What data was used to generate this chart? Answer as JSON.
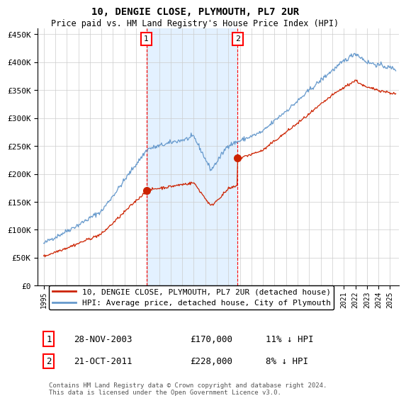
{
  "title": "10, DENGIE CLOSE, PLYMOUTH, PL7 2UR",
  "subtitle": "Price paid vs. HM Land Registry's House Price Index (HPI)",
  "ylim": [
    0,
    460000
  ],
  "yticks": [
    0,
    50000,
    100000,
    150000,
    200000,
    250000,
    300000,
    350000,
    400000,
    450000
  ],
  "ytick_labels": [
    "£0",
    "£50K",
    "£100K",
    "£150K",
    "£200K",
    "£250K",
    "£300K",
    "£350K",
    "£400K",
    "£450K"
  ],
  "grid_color": "#cccccc",
  "hpi_color": "#6699cc",
  "price_color": "#cc2200",
  "span_color": "#ddeeff",
  "sale1_x": 2003.91,
  "sale1_price": 170000,
  "sale2_x": 2011.8,
  "sale2_price": 228000,
  "legend_line1": "10, DENGIE CLOSE, PLYMOUTH, PL7 2UR (detached house)",
  "legend_line2": "HPI: Average price, detached house, City of Plymouth",
  "ann1_label": "1",
  "ann1_date": "28-NOV-2003",
  "ann1_price": "£170,000",
  "ann1_hpi": "11% ↓ HPI",
  "ann2_label": "2",
  "ann2_date": "21-OCT-2011",
  "ann2_price": "£228,000",
  "ann2_hpi": "8% ↓ HPI",
  "footer": "Contains HM Land Registry data © Crown copyright and database right 2024.\nThis data is licensed under the Open Government Licence v3.0."
}
